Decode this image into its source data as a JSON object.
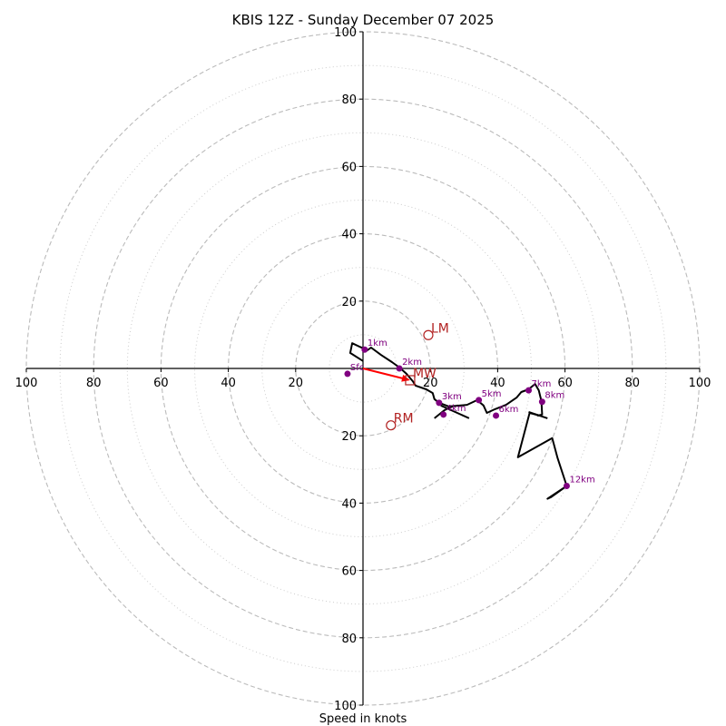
{
  "chart_data": {
    "type": "line",
    "subtype": "hodograph",
    "title": "KBIS 12Z - Sunday December 07 2025",
    "xlabel": "Speed in knots",
    "ylabel": "",
    "range_knots": [
      -100,
      100
    ],
    "ring_major": [
      20,
      40,
      60,
      80,
      100
    ],
    "ring_minor": [
      10,
      30,
      50,
      70,
      90
    ],
    "tick_labels": [
      "100",
      "80",
      "60",
      "40",
      "20",
      "20",
      "40",
      "60",
      "80",
      "100"
    ],
    "tick_values": [
      -100,
      -80,
      -60,
      -40,
      -20,
      20,
      40,
      60,
      80,
      100
    ],
    "grid": true,
    "trace": {
      "name": "Hodograph",
      "color": "#000000",
      "u": [
        0.0,
        -3.8,
        -3.2,
        -1.1,
        0.3,
        1.3,
        2.4,
        5.4,
        8.6,
        10.8,
        12.9,
        14.8,
        15.6,
        18.8,
        20.7,
        21.2,
        22.6,
        25.5,
        30.9,
        33.9,
        35.8,
        36.8,
        39.2,
        42.5,
        45.7,
        47.0,
        49.2,
        51.1,
        52.2,
        53.0,
        53.2,
        51.9,
        52.4,
        49.5,
        46.0,
        56.2,
        57.8,
        60.5,
        54.8,
        55.9,
        60.8
      ],
      "v": [
        2.2,
        4.6,
        7.5,
        6.5,
        5.9,
        5.4,
        6.2,
        4.0,
        1.9,
        0.3,
        -1.6,
        -3.8,
        -5.1,
        -6.2,
        -7.3,
        -9.1,
        -10.2,
        -11.3,
        -10.8,
        -9.4,
        -11.0,
        -13.2,
        -12.1,
        -10.8,
        -8.6,
        -7.0,
        -6.2,
        -4.6,
        -6.5,
        -9.7,
        -13.7,
        -14.0,
        -14.0,
        -13.2,
        -26.4,
        -20.7,
        -26.6,
        -34.9,
        -38.7,
        -38.2,
        -34.7
      ]
    },
    "trace_extra_segments": [
      {
        "u": [
          21.2,
          24.2,
          26.6
        ],
        "v": [
          -14.8,
          -12.4,
          -11.3
        ]
      },
      {
        "u": [
          23.1,
          31.5
        ],
        "v": [
          -11.0,
          -14.8
        ]
      },
      {
        "u": [
          49.2,
          54.8
        ],
        "v": [
          -12.9,
          -14.8
        ]
      }
    ],
    "height_markers": [
      {
        "label": "Sfc",
        "u": -4.6,
        "v": -1.6
      },
      {
        "label": "1km",
        "u": 0.5,
        "v": 5.6
      },
      {
        "label": "2km",
        "u": 10.8,
        "v": 0.0
      },
      {
        "label": "3km",
        "u": 22.6,
        "v": -10.2
      },
      {
        "label": "4km",
        "u": 23.9,
        "v": -13.7
      },
      {
        "label": "5km",
        "u": 34.4,
        "v": -9.4
      },
      {
        "label": "6km",
        "u": 39.5,
        "v": -14.0
      },
      {
        "label": "7km",
        "u": 49.2,
        "v": -6.5
      },
      {
        "label": "8km",
        "u": 53.2,
        "v": -9.9
      },
      {
        "label": "12km",
        "u": 60.5,
        "v": -34.9
      }
    ],
    "storm_motion": [
      {
        "label": "LM",
        "u": 19.4,
        "v": 9.9,
        "marker": "circle"
      },
      {
        "label": "RM",
        "u": 8.3,
        "v": -16.9,
        "marker": "circle"
      },
      {
        "label": "MW",
        "u": 14.0,
        "v": -3.5,
        "marker": "square"
      }
    ],
    "mean_wind_vector": {
      "u": 14.0,
      "v": -3.5,
      "color": "#ff0000"
    },
    "colors": {
      "trace": "#000000",
      "height_marker": "#800080",
      "storm_motion": "#b22222",
      "mean_wind_arrow": "#ff0000",
      "grid": "#bbbbbb"
    }
  }
}
